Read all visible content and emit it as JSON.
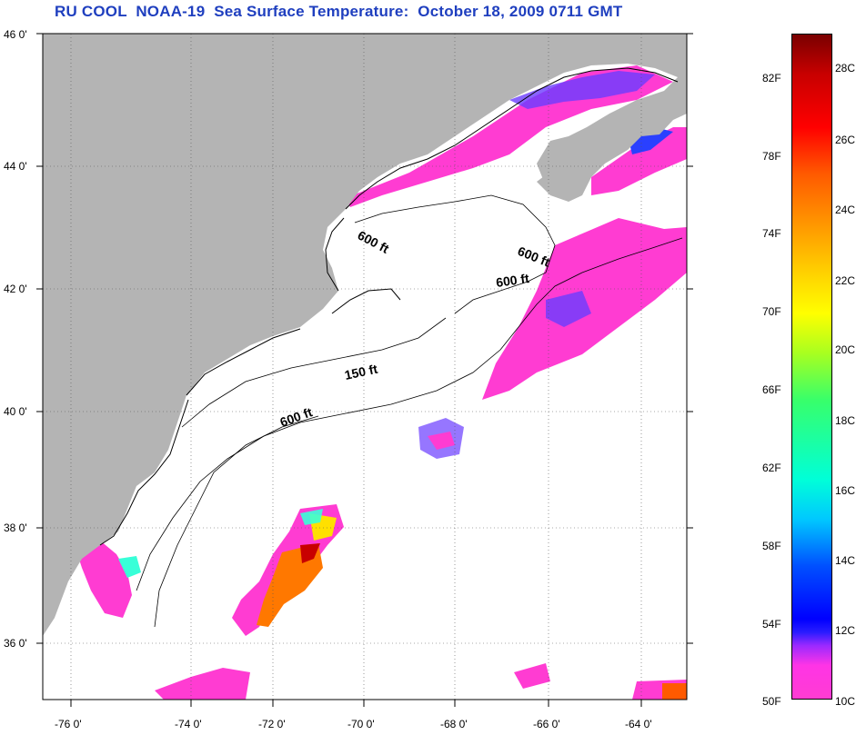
{
  "title": "RU COOL  NOAA-19  Sea Surface Temperature:  October 18, 2009 0711 GMT",
  "latitude_labels": [
    "46 0'",
    "44 0'",
    "42 0'",
    "40 0'",
    "38 0'",
    "36 0'"
  ],
  "longitude_labels": [
    "-76 0'",
    "-74 0'",
    "-72 0'",
    "-70 0'",
    "-68 0'",
    "-66 0'",
    "-64 0'"
  ],
  "contour_labels": [
    "600 ft",
    "600 ft",
    "600 ft",
    "150 ft",
    "600 ft"
  ],
  "colorbar": {
    "fahrenheit_labels": [
      "82F",
      "78F",
      "74F",
      "70F",
      "66F",
      "62F",
      "58F",
      "54F",
      "50F"
    ],
    "celsius_labels": [
      "28C",
      "26C",
      "24C",
      "22C",
      "20C",
      "18C",
      "16C",
      "14C",
      "12C",
      "10C"
    ]
  },
  "colors": {
    "land": "#b4b4b4",
    "water_no_data": "#ffffff",
    "sst_cold_pink": "#ff3cd2",
    "sst_blue": "#1e32ff",
    "sst_warm": "#ff7800",
    "title": "#1f3fbf"
  }
}
